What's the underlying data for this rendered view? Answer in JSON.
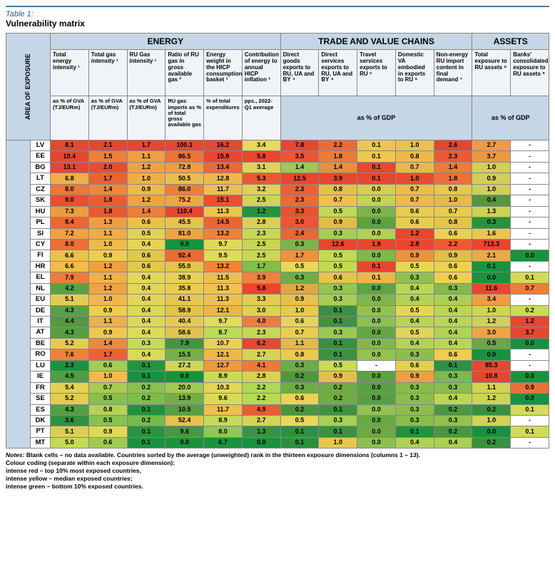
{
  "title_label": "Table 1:",
  "title": "Vulnerability matrix",
  "vert_header": "AREA OF EXPOSURE",
  "groups": [
    "ENERGY",
    "TRADE AND VALUE CHAINS",
    "ASSETS"
  ],
  "group_spans": [
    6,
    5,
    2
  ],
  "columns": [
    "Total energy intensity ¹",
    "Total gas intensity ¹",
    "RU Gas intensity ¹",
    "Ratio of RU gas in gross available gas ²",
    "Energy weight in the HICP consumption basket ³",
    "Contribution of energy to annual HICP inflation ³",
    "Direct goods exports to RU, UA and BY ⁴",
    "Direct services exports to RU, UA and BY ⁴",
    "Travel services exports to RU ⁵",
    "Domestic VA embodied in exports to RU ⁶",
    "Non-energy RU import content in final demand ⁷",
    "Total exposure to RU assets ⁸",
    "Banks' consolidated exposure to RU assets ⁹"
  ],
  "units": [
    "as % of GVA (TJ/EURm)",
    "as % of GVA (TJ/EURm)",
    "as % of GVA (TJ/EURm)",
    "RU gas imports as % of total gross available gas",
    "% of total expenditures",
    "pps., 2022-Q1 average",
    "as % of GDP",
    "as % of GDP"
  ],
  "unit_merge_spans": [
    1,
    1,
    1,
    1,
    1,
    1,
    5,
    2
  ],
  "countries": [
    "LV",
    "EE",
    "BG",
    "LT",
    "CZ",
    "SK",
    "HU",
    "PL",
    "SI",
    "CY",
    "FI",
    "HR",
    "EL",
    "NL",
    "EU",
    "DE",
    "IT",
    "AT",
    "BE",
    "RO",
    "LU",
    "IE",
    "FR",
    "SE",
    "ES",
    "DK",
    "PT",
    "MT"
  ],
  "data": [
    [
      "8.1",
      "2.1",
      "1.7",
      "100.1",
      "16.2",
      "3.4",
      "7.8",
      "2.2",
      "0.1",
      "1.0",
      "2.6",
      "2.7",
      "-"
    ],
    [
      "10.4",
      "1.5",
      "1.1",
      "86.5",
      "15.9",
      "5.8",
      "3.5",
      "1.8",
      "0.1",
      "0.8",
      "2.3",
      "3.7",
      "-"
    ],
    [
      "13.1",
      "2.0",
      "1.2",
      "72.8",
      "13.4",
      "3.1",
      "1.4",
      "1.4",
      "0.1",
      "0.7",
      "1.4",
      "1.0",
      "-"
    ],
    [
      "6.8",
      "1.7",
      "1.0",
      "50.5",
      "12.8",
      "5.3",
      "12.5",
      "3.9",
      "0.1",
      "1.0",
      "1.8",
      "0.9",
      "-"
    ],
    [
      "8.0",
      "1.4",
      "0.9",
      "86.0",
      "11.7",
      "3.2",
      "2.3",
      "0.8",
      "0.0",
      "0.7",
      "0.8",
      "1.0",
      "-"
    ],
    [
      "9.0",
      "1.8",
      "1.2",
      "75.2",
      "15.1",
      "2.5",
      "2.3",
      "0.7",
      "0.0",
      "0.7",
      "1.0",
      "0.4",
      "-"
    ],
    [
      "7.3",
      "1.8",
      "1.4",
      "110.4",
      "11.3",
      "1.2",
      "3.3",
      "0.5",
      "0.0",
      "0.6",
      "0.7",
      "1.3",
      "-"
    ],
    [
      "8.4",
      "1.3",
      "0.6",
      "45.5",
      "14.5",
      "2.8",
      "3.0",
      "0.9",
      "0.0",
      "0.6",
      "0.8",
      "0.3",
      "-"
    ],
    [
      "7.2",
      "1.1",
      "0.5",
      "81.0",
      "13.2",
      "2.3",
      "2.4",
      "0.3",
      "0.0",
      "1.2",
      "0.6",
      "1.6",
      "-"
    ],
    [
      "8.0",
      "1.0",
      "0.4",
      "0.0",
      "9.7",
      "2.5",
      "0.3",
      "12.6",
      "1.9",
      "2.8",
      "2.2",
      "713.3",
      "-"
    ],
    [
      "6.6",
      "0.9",
      "0.6",
      "92.4",
      "9.5",
      "2.5",
      "1.7",
      "0.5",
      "0.0",
      "0.9",
      "0.9",
      "2.1",
      "0.0"
    ],
    [
      "6.6",
      "1.2",
      "0.6",
      "55.0",
      "13.2",
      "1.7",
      "0.5",
      "0.5",
      "0.1",
      "0.5",
      "0.6",
      "0.1",
      "-"
    ],
    [
      "7.9",
      "1.1",
      "0.4",
      "38.9",
      "11.5",
      "3.9",
      "0.3",
      "0.6",
      "0.1",
      "0.3",
      "0.6",
      "0.0",
      "0.1"
    ],
    [
      "4.2",
      "1.2",
      "0.4",
      "35.8",
      "11.3",
      "5.8",
      "1.2",
      "0.3",
      "0.0",
      "0.4",
      "0.3",
      "11.6",
      "0.7"
    ],
    [
      "5.1",
      "1.0",
      "0.4",
      "41.1",
      "11.3",
      "3.3",
      "0.9",
      "0.3",
      "0.0",
      "0.4",
      "0.4",
      "3.4",
      "-"
    ],
    [
      "4.3",
      "0.9",
      "0.4",
      "58.9",
      "12.1",
      "3.0",
      "1.0",
      "0.1",
      "0.0",
      "0.5",
      "0.4",
      "1.0",
      "0.2"
    ],
    [
      "4.4",
      "1.1",
      "0.4",
      "40.4",
      "9.7",
      "4.0",
      "0.6",
      "0.1",
      "0.0",
      "0.4",
      "0.4",
      "1.2",
      "1.2"
    ],
    [
      "4.3",
      "0.9",
      "0.4",
      "58.6",
      "8.7",
      "2.3",
      "0.7",
      "0.3",
      "0.0",
      "0.5",
      "0.4",
      "3.0",
      "3.7"
    ],
    [
      "5.2",
      "1.4",
      "0.3",
      "7.9",
      "10.7",
      "6.2",
      "1.1",
      "0.1",
      "0.0",
      "0.4",
      "0.4",
      "0.5",
      "0.0"
    ],
    [
      "7.6",
      "1.7",
      "0.4",
      "15.5",
      "12.1",
      "2.7",
      "0.8",
      "0.1",
      "0.0",
      "0.3",
      "0.6",
      "0.0",
      "-"
    ],
    [
      "2.3",
      "0.6",
      "0.1",
      "27.2",
      "12.7",
      "4.1",
      "0.3",
      "0.5",
      "-",
      "0.6",
      "0.1",
      "85.3",
      "-"
    ],
    [
      "4.5",
      "1.0",
      "0.1",
      "0.0",
      "8.9",
      "2.8",
      "0.2",
      "0.9",
      "0.0",
      "0.9",
      "0.3",
      "10.8",
      "0.0"
    ],
    [
      "5.4",
      "0.7",
      "0.2",
      "20.0",
      "10.3",
      "2.2",
      "0.3",
      "0.2",
      "0.0",
      "0.3",
      "0.3",
      "1.1",
      "0.9"
    ],
    [
      "5.2",
      "0.5",
      "0.2",
      "13.9",
      "9.6",
      "2.2",
      "0.6",
      "0.2",
      "0.0",
      "0.3",
      "0.4",
      "1.2",
      "0.0"
    ],
    [
      "4.3",
      "0.8",
      "0.1",
      "10.5",
      "11.7",
      "4.9",
      "0.2",
      "0.1",
      "0.0",
      "0.3",
      "0.2",
      "0.2",
      "0.1"
    ],
    [
      "3.6",
      "0.5",
      "0.2",
      "52.4",
      "8.9",
      "2.7",
      "0.5",
      "0.3",
      "0.0",
      "0.3",
      "0.3",
      "1.0",
      "-"
    ],
    [
      "5.1",
      "0.9",
      "0.1",
      "9.6",
      "8.0",
      "1.3",
      "0.1",
      "0.1",
      "0.0",
      "0.1",
      "0.2",
      "0.0",
      "0.1"
    ],
    [
      "5.0",
      "0.6",
      "0.1",
      "0.0",
      "6.7",
      "0.0",
      "0.1",
      "1.0",
      "0.0",
      "0.4",
      "0.4",
      "0.2",
      "-"
    ]
  ],
  "colors": [
    [
      "#e8462f",
      "#e8462f",
      "#e8462f",
      "#e8462f",
      "#e8462f",
      "#e9d858",
      "#e8462f",
      "#ec6b35",
      "#eec64f",
      "#e8c24d",
      "#e8462f",
      "#f29a41",
      "#ffffff"
    ],
    [
      "#e8462f",
      "#ed803a",
      "#ef9f44",
      "#ed7337",
      "#e8462f",
      "#e8462f",
      "#ea5632",
      "#ed7b39",
      "#eec64f",
      "#efb84b",
      "#ea5b33",
      "#ee9741",
      "#ffffff"
    ],
    [
      "#e8462f",
      "#e94d31",
      "#eea143",
      "#ef9e43",
      "#eb6834",
      "#e3d157",
      "#a3c553",
      "#ed8d3e",
      "#e8462f",
      "#edb64a",
      "#ed7b39",
      "#d5ce55",
      "#ffffff"
    ],
    [
      "#f2af47",
      "#eb6234",
      "#efae47",
      "#e8c04d",
      "#eeb84a",
      "#ea5932",
      "#e8462f",
      "#e8462f",
      "#e8462f",
      "#e94c30",
      "#ec7037",
      "#d3ce55",
      "#ffffff"
    ],
    [
      "#ec7738",
      "#ed883c",
      "#efb84b",
      "#ed7e3a",
      "#edbf4c",
      "#e0d156",
      "#ec6034",
      "#e6c04c",
      "#d5ce55",
      "#ecbb4b",
      "#e8c74e",
      "#d0cf55",
      "#ffffff"
    ],
    [
      "#ea4f31",
      "#ea5d33",
      "#eea243",
      "#efa745",
      "#ea4f31",
      "#ccd556",
      "#ec6a35",
      "#efc04c",
      "#c3d355",
      "#efb94b",
      "#e4ba4b",
      "#559740",
      "#ffffff"
    ],
    [
      "#ef9a42",
      "#ea5832",
      "#ed7e3a",
      "#e8462f",
      "#f0c34d",
      "#23933e",
      "#e9512f",
      "#c0d856",
      "#7cb44a",
      "#e8cb4f",
      "#e8cb4f",
      "#cad356",
      "#ffffff"
    ],
    [
      "#eb6635",
      "#ef9e43",
      "#e4c24d",
      "#e5c44e",
      "#eb6535",
      "#d4d356",
      "#ea5631",
      "#e2bc4b",
      "#5ea243",
      "#e6cd50",
      "#e5c44e",
      "#26923e",
      "#ffffff"
    ],
    [
      "#efa143",
      "#edad47",
      "#e3d057",
      "#efa344",
      "#ed823b",
      "#c8d656",
      "#eb6535",
      "#a6cd55",
      "#b0d155",
      "#e8462f",
      "#ebd051",
      "#ecc54e",
      "#ffffff"
    ],
    [
      "#ec7037",
      "#eeba4b",
      "#e3d458",
      "#12933e",
      "#e0d958",
      "#c6d656",
      "#7cb44a",
      "#e8462f",
      "#e8462f",
      "#e8462f",
      "#eb5c33",
      "#e8462f",
      "#ffffff"
    ],
    [
      "#edbf4c",
      "#f2cc51",
      "#e2c64e",
      "#eb6b35",
      "#e1d958",
      "#c9d656",
      "#ee913f",
      "#c2d956",
      "#82b64b",
      "#ec933f",
      "#e4bc4b",
      "#e9ab47",
      "#18923e"
    ],
    [
      "#f2bc4b",
      "#efa043",
      "#e3c84f",
      "#e1c54e",
      "#ee843c",
      "#80be4e",
      "#e9d858",
      "#c2d956",
      "#e8462f",
      "#e3d859",
      "#ecd252",
      "#18923e",
      "#ffffff"
    ],
    [
      "#ed7b39",
      "#f0b148",
      "#e3d659",
      "#e7d052",
      "#eebf4c",
      "#ed823b",
      "#6eae48",
      "#e6c34d",
      "#eeb54a",
      "#92c050",
      "#efce51",
      "#18923e",
      "#d2da57"
    ],
    [
      "#59a142",
      "#efa344",
      "#e2d559",
      "#eacd50",
      "#f0c34d",
      "#e8462f",
      "#e2a745",
      "#94c651",
      "#5fa444",
      "#bbd656",
      "#82ba4c",
      "#e8462f",
      "#ed7e3a"
    ],
    [
      "#e1cc51",
      "#efba4b",
      "#e3d559",
      "#e6c64e",
      "#eec14d",
      "#e1cd51",
      "#e8c04d",
      "#a6cd55",
      "#81b64b",
      "#b3d355",
      "#adcf54",
      "#ef9d43",
      "#ffffff"
    ],
    [
      "#58a142",
      "#f0cc50",
      "#d9d958",
      "#e1c34d",
      "#efb249",
      "#dbd156",
      "#e8c94f",
      "#3b9040",
      "#93c250",
      "#e4d558",
      "#bad655",
      "#d1d355",
      "#cadb57"
    ],
    [
      "#559840",
      "#efb149",
      "#dbd958",
      "#e6cb50",
      "#e1db58",
      "#ed7e3a",
      "#e7d457",
      "#3f9240",
      "#8fc050",
      "#b6d455",
      "#bad655",
      "#cdd356",
      "#e8462f"
    ],
    [
      "#559f41",
      "#eec74e",
      "#dddb58",
      "#e0c34e",
      "#bddb57",
      "#c6d756",
      "#e9cd51",
      "#9ac953",
      "#64a645",
      "#dcd758",
      "#b1d255",
      "#efa444",
      "#e8462f"
    ],
    [
      "#e3cc51",
      "#ee893d",
      "#c3db57",
      "#46953f",
      "#e6d155",
      "#e8462f",
      "#e6b84a",
      "#399040",
      "#84b74b",
      "#b2d355",
      "#bad655",
      "#6aa745",
      "#18923e"
    ],
    [
      "#ed823b",
      "#eb6234",
      "#d9da58",
      "#76b048",
      "#edb84a",
      "#d3d356",
      "#e9c94f",
      "#3d9140",
      "#94c350",
      "#8cbe4f",
      "#efcc50",
      "#18923e",
      "#ffffff"
    ],
    [
      "#1b923e",
      "#a2ce54",
      "#27923e",
      "#cbd757",
      "#ed993e",
      "#ec7b39",
      "#6cad47",
      "#c8da56",
      "#ffffff",
      "#e4cf53",
      "#2e913f",
      "#e8462f",
      "#ffffff"
    ],
    [
      "#509e41",
      "#f0bb4b",
      "#18923e",
      "#19923e",
      "#c6db57",
      "#d4d356",
      "#509641",
      "#e3be4c",
      "#5ea243",
      "#eba143",
      "#7eb94c",
      "#e8462f",
      "#18923e"
    ],
    [
      "#e4d053",
      "#a7cb53",
      "#88c14f",
      "#a1c953",
      "#e4d557",
      "#afd856",
      "#6dad48",
      "#6dac47",
      "#5aa142",
      "#87bc4d",
      "#89bd4e",
      "#d3d255",
      "#ec6f37"
    ],
    [
      "#e2cb50",
      "#86c04f",
      "#7cbd4e",
      "#72af48",
      "#dbda58",
      "#b7d956",
      "#e8d356",
      "#6fad47",
      "#579f41",
      "#8abe4e",
      "#bbd655",
      "#cbd456",
      "#18923e"
    ],
    [
      "#549f42",
      "#b3d355",
      "#22923e",
      "#589f41",
      "#edbf4c",
      "#ea5b33",
      "#4c9540",
      "#3e9240",
      "#93c250",
      "#8cbe4f",
      "#4f9640",
      "#38913f",
      "#d4db57"
    ],
    [
      "#309140",
      "#87c14f",
      "#75ba4c",
      "#e3c24d",
      "#c2db57",
      "#d2d456",
      "#e6d858",
      "#a7ce55",
      "#68a845",
      "#87bc4d",
      "#92c150",
      "#cdd456",
      "#ffffff"
    ],
    [
      "#dcce54",
      "#deda58",
      "#2c923f",
      "#4a973f",
      "#92c753",
      "#3b9241",
      "#2e903f",
      "#3c9140",
      "#6da945",
      "#23923e",
      "#4a9540",
      "#18923e",
      "#d1da56"
    ],
    [
      "#c3d957",
      "#9fcb53",
      "#1a923e",
      "#1a923e",
      "#19923e",
      "#18923e",
      "#2a903f",
      "#e7c84f",
      "#8dc04f",
      "#afd255",
      "#abd054",
      "#38923f",
      "#ffffff"
    ]
  ],
  "notes": [
    "Blank cells – no data available.  Countries sorted by the average (unweighted) rank in the thirteen exposure dimensions (columns 1 – 13).",
    "Colour coding (separate within each exposure dimension):",
    "intense red – top 10% most exposed countries,",
    "intense yellow – median exposed countries;",
    "intense green – bottom 10% exposed countries."
  ],
  "notes_label": "Notes:"
}
